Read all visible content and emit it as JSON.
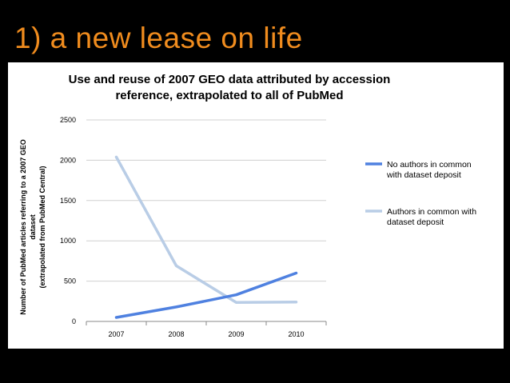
{
  "slide": {
    "title": "1) a new lease on life"
  },
  "chart_data": {
    "type": "line",
    "title_lines": [
      "Use and reuse of 2007 GEO data attributed by accession",
      "reference, extrapolated to all of PubMed"
    ],
    "ylabel_lines": [
      "Number of PubMed articles referring to a 2007 GEO",
      "dataset",
      "(extrapolated from PubMed Central)"
    ],
    "xlabel": "",
    "categories": [
      "2007",
      "2008",
      "2009",
      "2010"
    ],
    "ylim": [
      0,
      2500
    ],
    "yticks": [
      0,
      500,
      1000,
      1500,
      2000,
      2500
    ],
    "grid": "horizontal",
    "legend_position": "right",
    "series": [
      {
        "name_lines": [
          "No authors in common",
          "with dataset deposit"
        ],
        "color": "#4f81e0",
        "values": [
          50,
          180,
          330,
          600
        ]
      },
      {
        "name_lines": [
          "Authors in common with",
          "dataset deposit"
        ],
        "color": "#b9cde6",
        "values": [
          2040,
          690,
          235,
          240
        ]
      }
    ]
  }
}
